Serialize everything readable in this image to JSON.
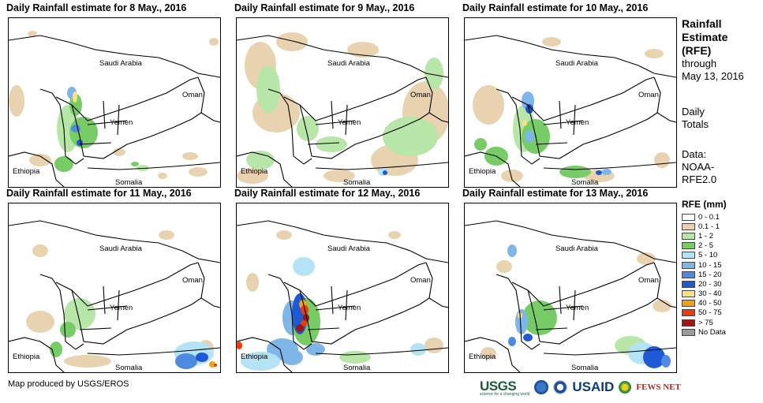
{
  "panels": [
    {
      "title": "Daily Rainfall estimate for 8 May., 2016",
      "key": "d8"
    },
    {
      "title": "Daily Rainfall estimate for 9 May., 2016",
      "key": "d9"
    },
    {
      "title": "Daily Rainfall estimate for 10 May., 2016",
      "key": "d10"
    },
    {
      "title": "Daily Rainfall estimate for 11 May., 2016",
      "key": "d11"
    },
    {
      "title": "Daily Rainfall estimate for 12 May., 2016",
      "key": "d12"
    },
    {
      "title": "Daily Rainfall estimate for 13 May., 2016",
      "key": "d13"
    }
  ],
  "map_labels": {
    "saudi": "Saudi Arabia",
    "oman": "Oman",
    "yemen": "Yemen",
    "ethiopia": "Ethiopia",
    "somalia": "Somalia"
  },
  "side": {
    "title_line1": "Rainfall",
    "title_line2": "Estimate",
    "title_line3": "(RFE)",
    "through": "through",
    "date": "May 13, 2016",
    "daily": "Daily",
    "totals": "Totals",
    "data_label": "Data:",
    "source1": "NOAA-",
    "source2": "RFE2.0"
  },
  "legend": {
    "title": "RFE (mm)",
    "items": [
      {
        "label": "0 - 0.1",
        "color": "#ffffff"
      },
      {
        "label": "0.1 - 1",
        "color": "#e8d2b0"
      },
      {
        "label": "1 - 2",
        "color": "#b8e6a8"
      },
      {
        "label": "2 - 5",
        "color": "#78cc66"
      },
      {
        "label": "5 - 10",
        "color": "#b3e3f5"
      },
      {
        "label": "10 - 15",
        "color": "#7fb6e8"
      },
      {
        "label": "15 - 20",
        "color": "#4d8ae0"
      },
      {
        "label": "20 - 30",
        "color": "#1e5ad6"
      },
      {
        "label": "30 - 40",
        "color": "#fce088"
      },
      {
        "label": "40 - 50",
        "color": "#f5a010"
      },
      {
        "label": "50 - 75",
        "color": "#f03a0a"
      },
      {
        "label": "> 75",
        "color": "#a01515"
      },
      {
        "label": "No Data",
        "color": "#9a9a9a"
      }
    ]
  },
  "footer": "Map produced by USGS/EROS",
  "logos": {
    "usgs": "USGS",
    "usgs_tag": "science for a changing world",
    "usaid": "USAID",
    "fews": "FEWS NET"
  }
}
